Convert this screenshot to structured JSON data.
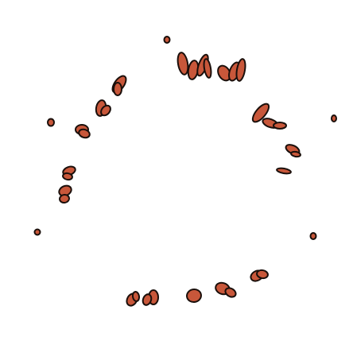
{
  "colors": {
    "background": "#ffffff",
    "fill": "#c8573a",
    "stroke": "#1a0f0b"
  }
}
